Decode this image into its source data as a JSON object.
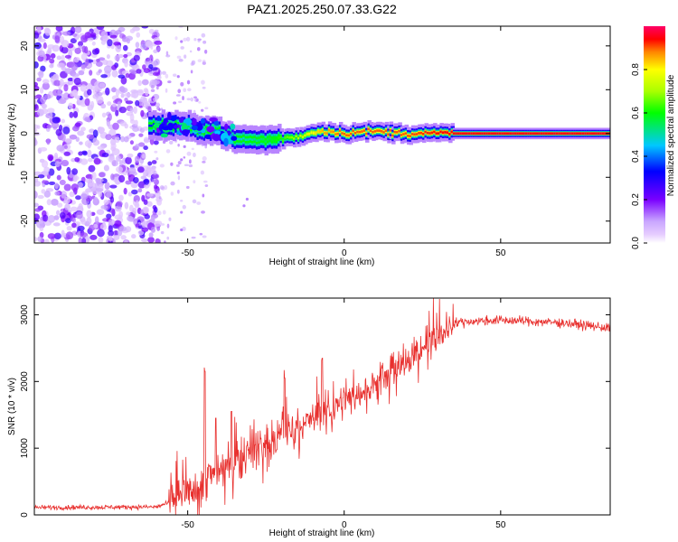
{
  "title": "PAZ1.2025.250.07.33.G22",
  "chart_data": [
    {
      "type": "heatmap",
      "xlabel": "Height of straight line (km)",
      "ylabel": "Frequency (Hz)",
      "xlim": [
        -99,
        85
      ],
      "ylim": [
        -25,
        24.5
      ],
      "xticks": [
        -50,
        0,
        50
      ],
      "xtick_labels": [
        "-50",
        "0",
        "50"
      ],
      "yticks": [
        -20,
        -10,
        0,
        10,
        20
      ],
      "ytick_labels": [
        "-20",
        "-10",
        "0",
        "10",
        "20"
      ],
      "colorbar": {
        "label": "Normalized spectral amplitude",
        "range": [
          0,
          1
        ],
        "ticks": [
          0,
          0.2,
          0.4,
          0.6,
          0.8
        ],
        "tick_labels": [
          "0.0",
          "0.2",
          "0.4",
          "0.6",
          "0.8"
        ],
        "colormap": "rainbow"
      },
      "ridge": [
        {
          "x": -60,
          "freq": 1.8,
          "amp": 0.35
        },
        {
          "x": -50,
          "freq": 1.5,
          "amp": 0.4
        },
        {
          "x": -40,
          "freq": 0.5,
          "amp": 0.4
        },
        {
          "x": -35,
          "freq": -1.3,
          "amp": 0.45
        },
        {
          "x": -25,
          "freq": -1.5,
          "amp": 0.55
        },
        {
          "x": -15,
          "freq": -0.8,
          "amp": 0.7
        },
        {
          "x": -7,
          "freq": 0.7,
          "amp": 0.85
        },
        {
          "x": 0,
          "freq": 0.1,
          "amp": 0.9
        },
        {
          "x": 10,
          "freq": 0.5,
          "amp": 0.9
        },
        {
          "x": 20,
          "freq": 0.0,
          "amp": 0.9
        },
        {
          "x": 35,
          "freq": 0.0,
          "amp": 0.95
        },
        {
          "x": 85,
          "freq": 0.0,
          "amp": 0.95
        }
      ]
    },
    {
      "type": "line",
      "xlabel": "Height of straight line (km)",
      "ylabel": "SNR (10 * v/v)",
      "xlim": [
        -99,
        85
      ],
      "ylim": [
        0,
        3250
      ],
      "xticks": [
        -50,
        0,
        50
      ],
      "xtick_labels": [
        "-50",
        "0",
        "50"
      ],
      "yticks": [
        0,
        1000,
        2000,
        3000
      ],
      "ytick_labels": [
        "0",
        "1000",
        "2000",
        "3000"
      ],
      "color": "#e8302e",
      "trend": {
        "x": [
          -99,
          -60,
          -56,
          -50,
          -45,
          -40,
          -30,
          -20,
          -10,
          0,
          10,
          20,
          30,
          35,
          40,
          50,
          60,
          70,
          85
        ],
        "y": [
          110,
          120,
          180,
          350,
          500,
          700,
          950,
          1200,
          1450,
          1700,
          1950,
          2300,
          2700,
          2880,
          2900,
          2920,
          2900,
          2880,
          2800
        ]
      },
      "spikes": [
        {
          "x": -44.5,
          "y": 2150
        },
        {
          "x": -41,
          "y": 1450
        },
        {
          "x": -36,
          "y": 1550
        },
        {
          "x": -19,
          "y": 2050
        },
        {
          "x": -7,
          "y": 2350
        }
      ]
    }
  ]
}
